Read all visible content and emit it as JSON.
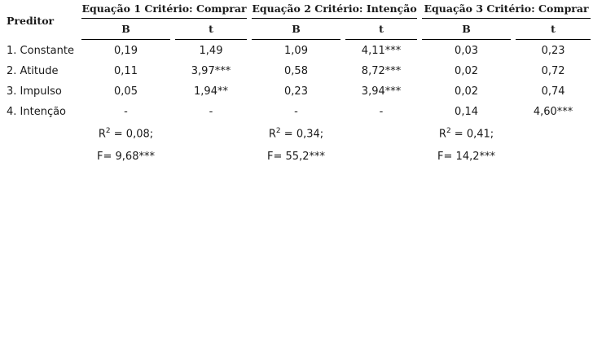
{
  "table": {
    "predictor_header": "Preditor",
    "equations": [
      {
        "title": "Equação 1 Critério: Comprar",
        "b_label": "B",
        "t_label": "t"
      },
      {
        "title": "Equação 2 Critério: Intenção",
        "b_label": "B",
        "t_label": "t"
      },
      {
        "title": "Equação 3 Critério: Comprar",
        "b_label": "B",
        "t_label": "t"
      }
    ],
    "rows": [
      {
        "label": "1. Constante",
        "cells": [
          "0,19",
          "1,49",
          "1,09",
          "4,11***",
          "0,03",
          "0,23"
        ]
      },
      {
        "label": "2. Atitude",
        "cells": [
          "0,11",
          "3,97***",
          "0,58",
          "8,72***",
          "0,02",
          "0,72"
        ]
      },
      {
        "label": "3. Impulso",
        "cells": [
          "0,05",
          "1,94**",
          "0,23",
          "3,94***",
          "0,02",
          "0,74"
        ]
      },
      {
        "label": "4. Intenção",
        "cells": [
          "-",
          "-",
          "-",
          "-",
          "0,14",
          "4,60***"
        ]
      }
    ],
    "r2": [
      {
        "prefix": "R",
        "exp": "2",
        "value": " = 0,08;"
      },
      {
        "prefix": "R",
        "exp": "2",
        "value": " = 0,34;"
      },
      {
        "prefix": "R",
        "exp": "2",
        "value": " = 0,41;"
      }
    ],
    "f": [
      "F= 9,68***",
      "F= 55,2***",
      "F= 14,2***"
    ]
  }
}
